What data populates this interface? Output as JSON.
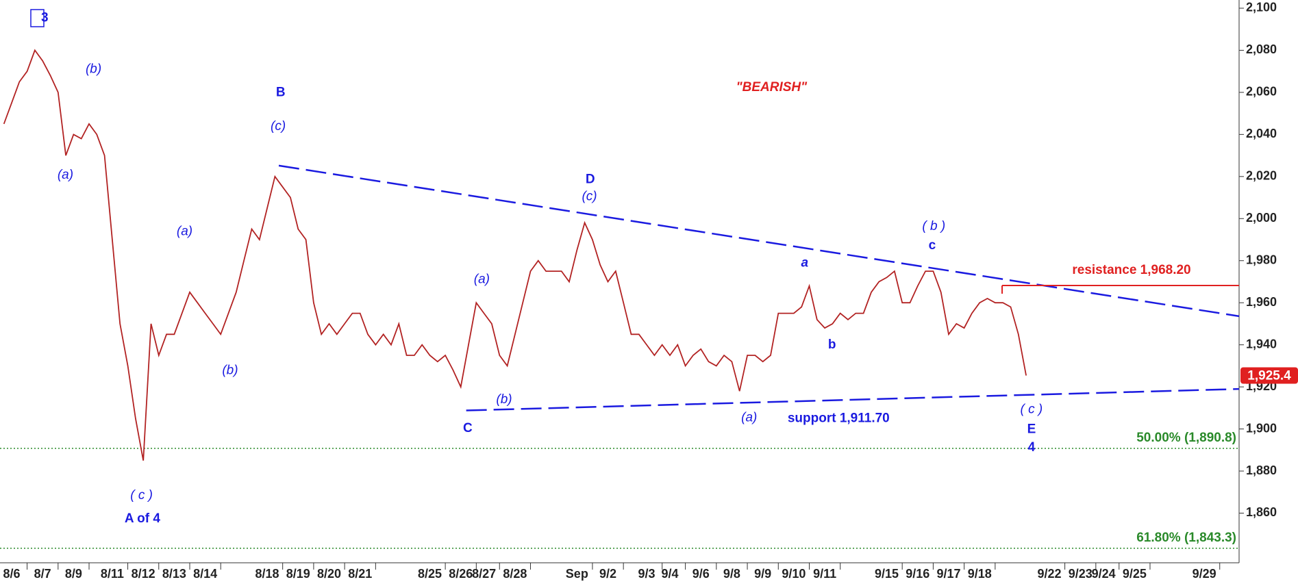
{
  "chart_data": {
    "type": "line",
    "categories": [
      null,
      "8/6",
      null,
      null,
      null,
      "8/7",
      null,
      null,
      null,
      "8/9",
      null,
      null,
      null,
      null,
      "8/11",
      null,
      null,
      null,
      "8/12",
      null,
      null,
      null,
      "8/13",
      null,
      null,
      null,
      "8/14",
      null,
      null,
      null,
      null,
      null,
      null,
      null,
      "8/18",
      null,
      null,
      null,
      "8/19",
      null,
      null,
      null,
      "8/20",
      null,
      null,
      null,
      "8/21",
      null,
      null,
      null,
      null,
      null,
      null,
      null,
      null,
      "8/25",
      null,
      null,
      null,
      "8/26",
      null,
      null,
      "8/27",
      null,
      null,
      null,
      "8/28",
      null,
      null,
      null,
      null,
      null,
      null,
      null,
      "Sep",
      null,
      null,
      null,
      "9/2",
      null,
      null,
      null,
      null,
      "9/3",
      null,
      null,
      "9/4",
      null,
      null,
      null,
      "9/6",
      null,
      null,
      null,
      "9/8",
      null,
      null,
      null,
      "9/9",
      null,
      null,
      null,
      "9/10",
      null,
      null,
      null,
      "9/11",
      null,
      null,
      null,
      null,
      null,
      null,
      null,
      "9/15",
      null,
      null,
      null,
      "9/16",
      null,
      null,
      null,
      "9/17",
      null,
      null,
      null,
      "9/18",
      null,
      null,
      null,
      null,
      null,
      null,
      null,
      null,
      "9/22",
      null,
      null,
      null,
      "9/23",
      null,
      null,
      "9/24",
      null,
      null,
      null,
      "9/25",
      null,
      null,
      null,
      null,
      null,
      null,
      null,
      null,
      "9/29",
      null,
      null,
      null,
      null
    ],
    "series": [
      {
        "color": "#b22222",
        "values": [
          2045,
          2055,
          2065,
          2070,
          2080,
          2075,
          2068,
          2060,
          2030,
          2040,
          2038,
          2045,
          2040,
          2030,
          1990,
          1950,
          1930,
          1905,
          1885,
          1950,
          1935,
          1945,
          1945,
          1955,
          1965,
          1960,
          1955,
          1950,
          1945,
          1955,
          1965,
          1980,
          1995,
          1990,
          2005,
          2020,
          2015,
          2010,
          1995,
          1990,
          1960,
          1945,
          1950,
          1945,
          1950,
          1955,
          1955,
          1945,
          1940,
          1945,
          1940,
          1950,
          1935,
          1935,
          1940,
          1935,
          1932,
          1935,
          1928,
          1920,
          1940,
          1960,
          1955,
          1950,
          1935,
          1930,
          1945,
          1960,
          1975,
          1980,
          1975,
          1975,
          1975,
          1970,
          1985,
          1998,
          1990,
          1978,
          1970,
          1975,
          1960,
          1945,
          1945,
          1940,
          1935,
          1940,
          1935,
          1940,
          1930,
          1935,
          1938,
          1932,
          1930,
          1935,
          1932,
          1918,
          1935,
          1935,
          1932,
          1935,
          1955,
          1955,
          1955,
          1958,
          1968,
          1952,
          1948,
          1950,
          1955,
          1952,
          1955,
          1955,
          1965,
          1970,
          1972,
          1975,
          1960,
          1960,
          1968,
          1975,
          1975,
          1965,
          1945,
          1950,
          1948,
          1955,
          1960,
          1962,
          1960,
          1960,
          1958,
          1945,
          1925.4,
          null,
          null,
          null,
          null,
          null,
          null,
          null,
          null,
          null,
          null,
          null,
          null,
          null,
          null,
          null,
          null,
          null,
          null,
          null,
          null,
          null,
          null,
          null,
          null,
          null,
          null,
          null
        ]
      }
    ],
    "ylim": [
      1836.4,
      2103.9
    ],
    "yticks": [
      {
        "value": 1860,
        "label": "1,860"
      },
      {
        "value": 1880,
        "label": "1,880"
      },
      {
        "value": 1900,
        "label": "1,900"
      },
      {
        "value": 1920,
        "label": "1,920"
      },
      {
        "value": 1940,
        "label": "1,940"
      },
      {
        "value": 1960,
        "label": "1,960"
      },
      {
        "value": 1980,
        "label": "1,980"
      },
      {
        "value": 2000,
        "label": "2,000"
      },
      {
        "value": 2020,
        "label": "2,020"
      },
      {
        "value": 2040,
        "label": "2,040"
      },
      {
        "value": 2060,
        "label": "2,060"
      },
      {
        "value": 2080,
        "label": "2,080"
      },
      {
        "value": 2100,
        "label": "2,100"
      }
    ],
    "price_tag": {
      "value": 1925.4,
      "label": "1,925.4",
      "color": "#e02020"
    },
    "trendlines": [
      {
        "x": [
          35.5,
          159.5
        ],
        "values": [
          2025.2,
          1953.6
        ],
        "color": "#1a1ae0"
      },
      {
        "x": [
          59.7,
          159.5
        ],
        "values": [
          1908.8,
          1919.0
        ],
        "color": "#1a1ae0"
      }
    ],
    "resistance": {
      "x": 128.9,
      "value": 1968.2,
      "label": "resistance 1,968.20",
      "color": "#e02020"
    },
    "levels": [
      {
        "value": 1890.8,
        "label": "50.00% (1,890.8)",
        "color": "#2a8a2a"
      },
      {
        "value": 1843.3,
        "label": "61.80% (1,843.3)",
        "color": "#2a8a2a"
      }
    ],
    "annotations": [
      {
        "text": "3",
        "color": "#1a1ae0"
      },
      {
        "text": "(b)",
        "color": "#1a1ae0"
      },
      {
        "text": "(a)",
        "color": "#1a1ae0"
      },
      {
        "text": "B",
        "color": "#1a1ae0"
      },
      {
        "text": "(c)",
        "color": "#1a1ae0"
      },
      {
        "text": "(a)",
        "color": "#1a1ae0"
      },
      {
        "text": "(b)",
        "color": "#1a1ae0"
      },
      {
        "text": "( c )",
        "color": "#1a1ae0"
      },
      {
        "text": "A of 4",
        "color": "#1a1ae0"
      },
      {
        "text": "(a)",
        "color": "#1a1ae0"
      },
      {
        "text": "(b)",
        "color": "#1a1ae0"
      },
      {
        "text": "C",
        "color": "#1a1ae0"
      },
      {
        "text": "D",
        "color": "#1a1ae0"
      },
      {
        "text": "(c)",
        "color": "#1a1ae0"
      },
      {
        "text": "\"BEARISH\"",
        "color": "#e02020"
      },
      {
        "text": "a",
        "color": "#1a1ae0"
      },
      {
        "text": "b",
        "color": "#1a1ae0"
      },
      {
        "text": "( b )",
        "color": "#1a1ae0"
      },
      {
        "text": "c",
        "color": "#1a1ae0"
      },
      {
        "text": "(a)",
        "color": "#1a1ae0"
      },
      {
        "text": "support 1,911.70",
        "color": "#1a1ae0"
      },
      {
        "text": "( c )",
        "color": "#1a1ae0"
      },
      {
        "text": "E",
        "color": "#1a1ae0"
      },
      {
        "text": "4",
        "color": "#1a1ae0"
      }
    ]
  }
}
